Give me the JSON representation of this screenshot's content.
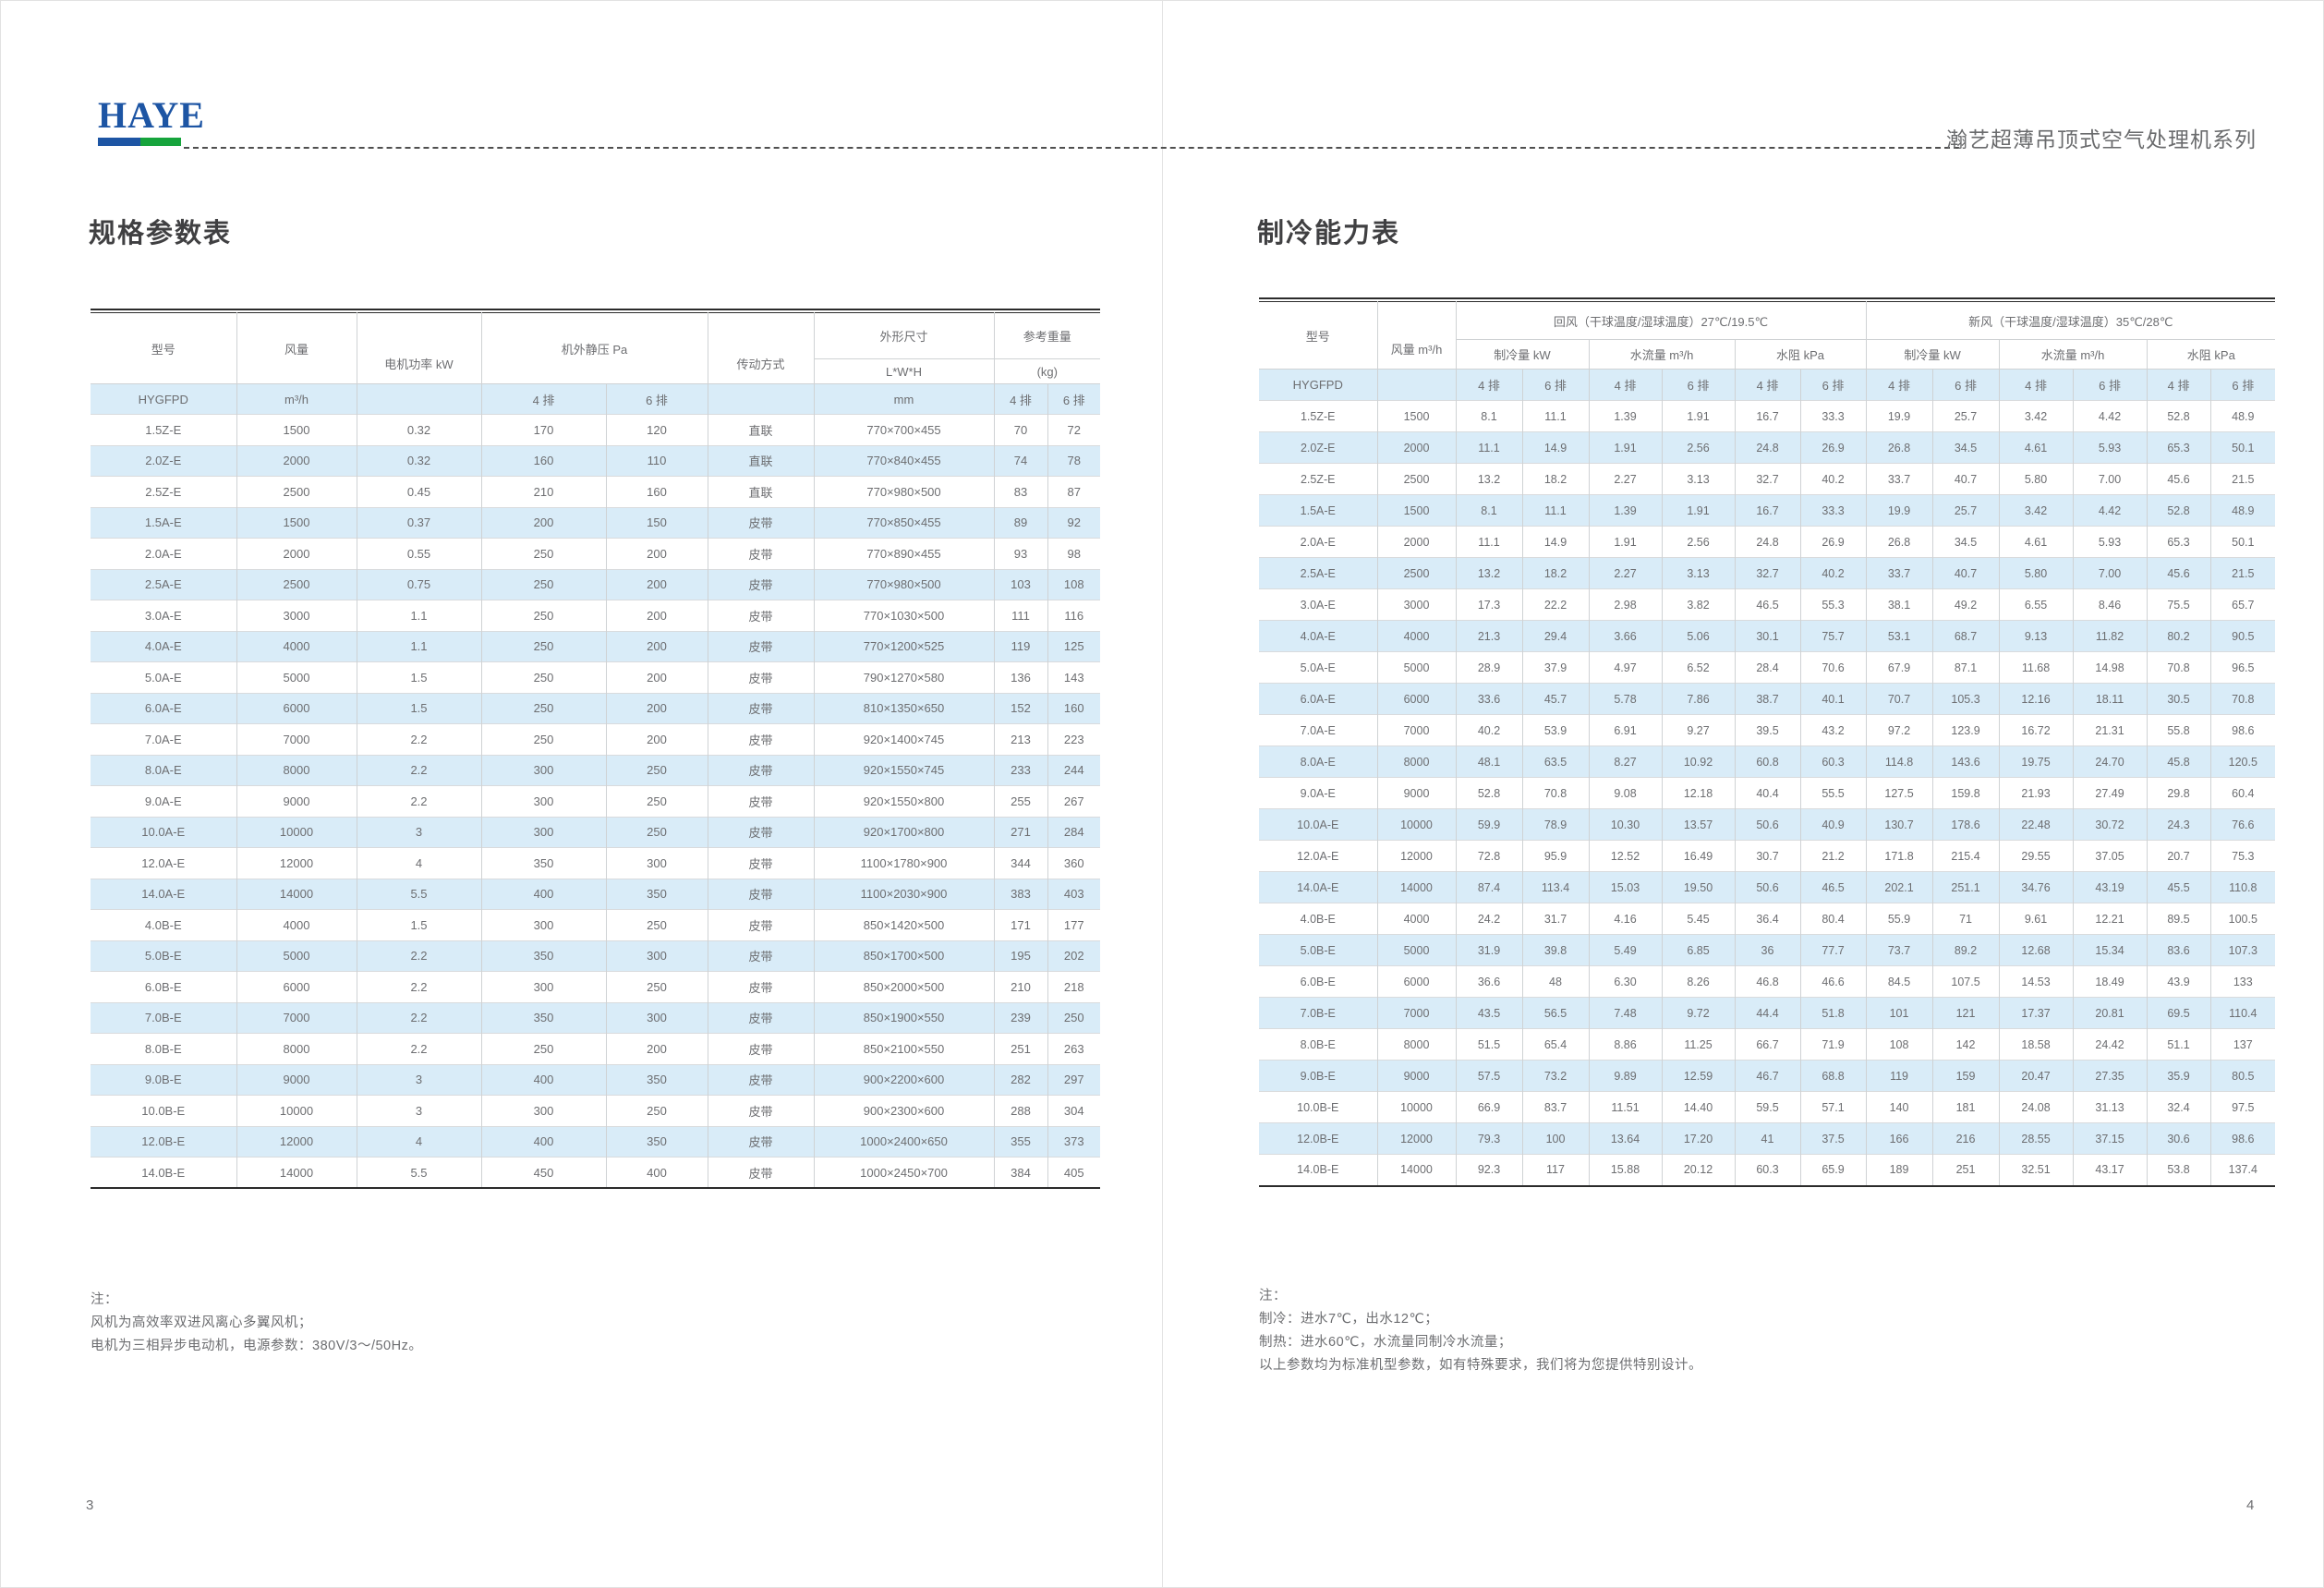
{
  "brand": {
    "logo_text": "HAYE",
    "series_title": "瀚艺超薄吊顶式空气处理机系列",
    "logo_blue": "#1d55a4",
    "bar_green": "#16a43c",
    "row_alt_blue": "#d9ecf8"
  },
  "left_page": {
    "page_number": "3",
    "title": "规格参数表",
    "table": {
      "header": {
        "model": "型号",
        "airflow": "风量",
        "motor_power": "电机功率 kW",
        "static_pressure": "机外静压 Pa",
        "drive": "传动方式",
        "dimensions": "外形尺寸",
        "dims_sub": "L*W*H",
        "weight": "参考重量",
        "weight_sub": "(kg)"
      },
      "units_row": [
        "HYGFPD",
        "m³/h",
        "",
        "4 排",
        "6 排",
        "",
        "mm",
        "4 排",
        "6 排"
      ],
      "rows": [
        [
          "1.5Z-E",
          "1500",
          "0.32",
          "170",
          "120",
          "直联",
          "770×700×455",
          "70",
          "72"
        ],
        [
          "2.0Z-E",
          "2000",
          "0.32",
          "160",
          "110",
          "直联",
          "770×840×455",
          "74",
          "78"
        ],
        [
          "2.5Z-E",
          "2500",
          "0.45",
          "210",
          "160",
          "直联",
          "770×980×500",
          "83",
          "87"
        ],
        [
          "1.5A-E",
          "1500",
          "0.37",
          "200",
          "150",
          "皮带",
          "770×850×455",
          "89",
          "92"
        ],
        [
          "2.0A-E",
          "2000",
          "0.55",
          "250",
          "200",
          "皮带",
          "770×890×455",
          "93",
          "98"
        ],
        [
          "2.5A-E",
          "2500",
          "0.75",
          "250",
          "200",
          "皮带",
          "770×980×500",
          "103",
          "108"
        ],
        [
          "3.0A-E",
          "3000",
          "1.1",
          "250",
          "200",
          "皮带",
          "770×1030×500",
          "111",
          "116"
        ],
        [
          "4.0A-E",
          "4000",
          "1.1",
          "250",
          "200",
          "皮带",
          "770×1200×525",
          "119",
          "125"
        ],
        [
          "5.0A-E",
          "5000",
          "1.5",
          "250",
          "200",
          "皮带",
          "790×1270×580",
          "136",
          "143"
        ],
        [
          "6.0A-E",
          "6000",
          "1.5",
          "250",
          "200",
          "皮带",
          "810×1350×650",
          "152",
          "160"
        ],
        [
          "7.0A-E",
          "7000",
          "2.2",
          "250",
          "200",
          "皮带",
          "920×1400×745",
          "213",
          "223"
        ],
        [
          "8.0A-E",
          "8000",
          "2.2",
          "300",
          "250",
          "皮带",
          "920×1550×745",
          "233",
          "244"
        ],
        [
          "9.0A-E",
          "9000",
          "2.2",
          "300",
          "250",
          "皮带",
          "920×1550×800",
          "255",
          "267"
        ],
        [
          "10.0A-E",
          "10000",
          "3",
          "300",
          "250",
          "皮带",
          "920×1700×800",
          "271",
          "284"
        ],
        [
          "12.0A-E",
          "12000",
          "4",
          "350",
          "300",
          "皮带",
          "1100×1780×900",
          "344",
          "360"
        ],
        [
          "14.0A-E",
          "14000",
          "5.5",
          "400",
          "350",
          "皮带",
          "1100×2030×900",
          "383",
          "403"
        ],
        [
          "4.0B-E",
          "4000",
          "1.5",
          "300",
          "250",
          "皮带",
          "850×1420×500",
          "171",
          "177"
        ],
        [
          "5.0B-E",
          "5000",
          "2.2",
          "350",
          "300",
          "皮带",
          "850×1700×500",
          "195",
          "202"
        ],
        [
          "6.0B-E",
          "6000",
          "2.2",
          "300",
          "250",
          "皮带",
          "850×2000×500",
          "210",
          "218"
        ],
        [
          "7.0B-E",
          "7000",
          "2.2",
          "350",
          "300",
          "皮带",
          "850×1900×550",
          "239",
          "250"
        ],
        [
          "8.0B-E",
          "8000",
          "2.2",
          "250",
          "200",
          "皮带",
          "850×2100×550",
          "251",
          "263"
        ],
        [
          "9.0B-E",
          "9000",
          "3",
          "400",
          "350",
          "皮带",
          "900×2200×600",
          "282",
          "297"
        ],
        [
          "10.0B-E",
          "10000",
          "3",
          "300",
          "250",
          "皮带",
          "900×2300×600",
          "288",
          "304"
        ],
        [
          "12.0B-E",
          "12000",
          "4",
          "400",
          "350",
          "皮带",
          "1000×2400×650",
          "355",
          "373"
        ],
        [
          "14.0B-E",
          "14000",
          "5.5",
          "450",
          "400",
          "皮带",
          "1000×2450×700",
          "384",
          "405"
        ]
      ]
    },
    "notes": [
      "注：",
      "风机为高效率双进风离心多翼风机；",
      "电机为三相异步电动机，电源参数：380V/3～/50Hz。"
    ]
  },
  "right_page": {
    "page_number": "4",
    "title": "制冷能力表",
    "table": {
      "header": {
        "model": "型号",
        "airflow": "风量 m³/h",
        "return_air": "回风（干球温度/湿球温度）27℃/19.5℃",
        "fresh_air": "新风（干球温度/湿球温度）35℃/28℃",
        "cooling": "制冷量 kW",
        "water_flow": "水流量 m³/h",
        "water_resist": "水阻 kPa"
      },
      "units_row": [
        "HYGFPD",
        "",
        "4 排",
        "6 排",
        "4 排",
        "6 排",
        "4 排",
        "6 排",
        "4 排",
        "6 排",
        "4 排",
        "6 排",
        "4 排",
        "6 排"
      ],
      "rows": [
        [
          "1.5Z-E",
          "1500",
          "8.1",
          "11.1",
          "1.39",
          "1.91",
          "16.7",
          "33.3",
          "19.9",
          "25.7",
          "3.42",
          "4.42",
          "52.8",
          "48.9"
        ],
        [
          "2.0Z-E",
          "2000",
          "11.1",
          "14.9",
          "1.91",
          "2.56",
          "24.8",
          "26.9",
          "26.8",
          "34.5",
          "4.61",
          "5.93",
          "65.3",
          "50.1"
        ],
        [
          "2.5Z-E",
          "2500",
          "13.2",
          "18.2",
          "2.27",
          "3.13",
          "32.7",
          "40.2",
          "33.7",
          "40.7",
          "5.80",
          "7.00",
          "45.6",
          "21.5"
        ],
        [
          "1.5A-E",
          "1500",
          "8.1",
          "11.1",
          "1.39",
          "1.91",
          "16.7",
          "33.3",
          "19.9",
          "25.7",
          "3.42",
          "4.42",
          "52.8",
          "48.9"
        ],
        [
          "2.0A-E",
          "2000",
          "11.1",
          "14.9",
          "1.91",
          "2.56",
          "24.8",
          "26.9",
          "26.8",
          "34.5",
          "4.61",
          "5.93",
          "65.3",
          "50.1"
        ],
        [
          "2.5A-E",
          "2500",
          "13.2",
          "18.2",
          "2.27",
          "3.13",
          "32.7",
          "40.2",
          "33.7",
          "40.7",
          "5.80",
          "7.00",
          "45.6",
          "21.5"
        ],
        [
          "3.0A-E",
          "3000",
          "17.3",
          "22.2",
          "2.98",
          "3.82",
          "46.5",
          "55.3",
          "38.1",
          "49.2",
          "6.55",
          "8.46",
          "75.5",
          "65.7"
        ],
        [
          "4.0A-E",
          "4000",
          "21.3",
          "29.4",
          "3.66",
          "5.06",
          "30.1",
          "75.7",
          "53.1",
          "68.7",
          "9.13",
          "11.82",
          "80.2",
          "90.5"
        ],
        [
          "5.0A-E",
          "5000",
          "28.9",
          "37.9",
          "4.97",
          "6.52",
          "28.4",
          "70.6",
          "67.9",
          "87.1",
          "11.68",
          "14.98",
          "70.8",
          "96.5"
        ],
        [
          "6.0A-E",
          "6000",
          "33.6",
          "45.7",
          "5.78",
          "7.86",
          "38.7",
          "40.1",
          "70.7",
          "105.3",
          "12.16",
          "18.11",
          "30.5",
          "70.8"
        ],
        [
          "7.0A-E",
          "7000",
          "40.2",
          "53.9",
          "6.91",
          "9.27",
          "39.5",
          "43.2",
          "97.2",
          "123.9",
          "16.72",
          "21.31",
          "55.8",
          "98.6"
        ],
        [
          "8.0A-E",
          "8000",
          "48.1",
          "63.5",
          "8.27",
          "10.92",
          "60.8",
          "60.3",
          "114.8",
          "143.6",
          "19.75",
          "24.70",
          "45.8",
          "120.5"
        ],
        [
          "9.0A-E",
          "9000",
          "52.8",
          "70.8",
          "9.08",
          "12.18",
          "40.4",
          "55.5",
          "127.5",
          "159.8",
          "21.93",
          "27.49",
          "29.8",
          "60.4"
        ],
        [
          "10.0A-E",
          "10000",
          "59.9",
          "78.9",
          "10.30",
          "13.57",
          "50.6",
          "40.9",
          "130.7",
          "178.6",
          "22.48",
          "30.72",
          "24.3",
          "76.6"
        ],
        [
          "12.0A-E",
          "12000",
          "72.8",
          "95.9",
          "12.52",
          "16.49",
          "30.7",
          "21.2",
          "171.8",
          "215.4",
          "29.55",
          "37.05",
          "20.7",
          "75.3"
        ],
        [
          "14.0A-E",
          "14000",
          "87.4",
          "113.4",
          "15.03",
          "19.50",
          "50.6",
          "46.5",
          "202.1",
          "251.1",
          "34.76",
          "43.19",
          "45.5",
          "110.8"
        ],
        [
          "4.0B-E",
          "4000",
          "24.2",
          "31.7",
          "4.16",
          "5.45",
          "36.4",
          "80.4",
          "55.9",
          "71",
          "9.61",
          "12.21",
          "89.5",
          "100.5"
        ],
        [
          "5.0B-E",
          "5000",
          "31.9",
          "39.8",
          "5.49",
          "6.85",
          "36",
          "77.7",
          "73.7",
          "89.2",
          "12.68",
          "15.34",
          "83.6",
          "107.3"
        ],
        [
          "6.0B-E",
          "6000",
          "36.6",
          "48",
          "6.30",
          "8.26",
          "46.8",
          "46.6",
          "84.5",
          "107.5",
          "14.53",
          "18.49",
          "43.9",
          "133"
        ],
        [
          "7.0B-E",
          "7000",
          "43.5",
          "56.5",
          "7.48",
          "9.72",
          "44.4",
          "51.8",
          "101",
          "121",
          "17.37",
          "20.81",
          "69.5",
          "110.4"
        ],
        [
          "8.0B-E",
          "8000",
          "51.5",
          "65.4",
          "8.86",
          "11.25",
          "66.7",
          "71.9",
          "108",
          "142",
          "18.58",
          "24.42",
          "51.1",
          "137"
        ],
        [
          "9.0B-E",
          "9000",
          "57.5",
          "73.2",
          "9.89",
          "12.59",
          "46.7",
          "68.8",
          "119",
          "159",
          "20.47",
          "27.35",
          "35.9",
          "80.5"
        ],
        [
          "10.0B-E",
          "10000",
          "66.9",
          "83.7",
          "11.51",
          "14.40",
          "59.5",
          "57.1",
          "140",
          "181",
          "24.08",
          "31.13",
          "32.4",
          "97.5"
        ],
        [
          "12.0B-E",
          "12000",
          "79.3",
          "100",
          "13.64",
          "17.20",
          "41",
          "37.5",
          "166",
          "216",
          "28.55",
          "37.15",
          "30.6",
          "98.6"
        ],
        [
          "14.0B-E",
          "14000",
          "92.3",
          "117",
          "15.88",
          "20.12",
          "60.3",
          "65.9",
          "189",
          "251",
          "32.51",
          "43.17",
          "53.8",
          "137.4"
        ]
      ]
    },
    "notes": [
      "注：",
      "制冷：进水7℃，出水12℃；",
      "制热：进水60℃，水流量同制冷水流量；",
      "以上参数均为标准机型参数，如有特殊要求，我们将为您提供特别设计。"
    ]
  }
}
